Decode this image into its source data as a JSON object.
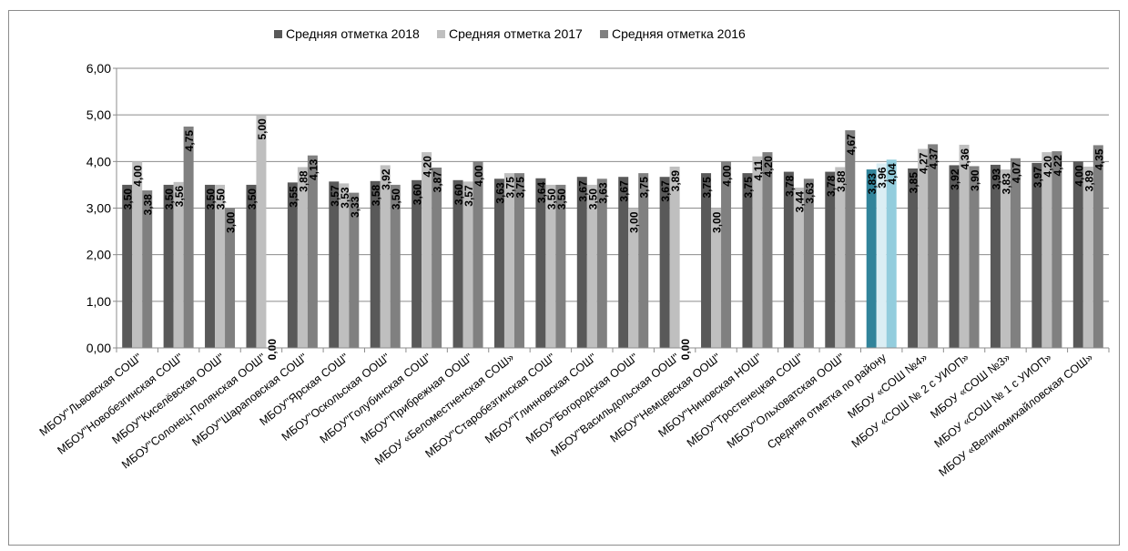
{
  "chart_data": {
    "type": "bar",
    "categories": [
      "МБОУ\"Львовская  СОШ\"",
      "МБОУ\"Новобезгинская СОШ\"",
      "МБОУ\"Киселёвская ООШ\"",
      "МБОУ\"Солонец-Полянская ООШ\"",
      "МБОУ\"Шараповская  СОШ\"",
      "МБОУ\"Ярская  СОШ\"",
      "МБОУ\"Оскольская ООШ\"",
      "МБОУ\"Голубинская СОШ\"",
      "МБОУ\"Прибрежная  ООШ\"",
      "МБОУ «Беломестненская СОШ»",
      "МБОУ\"Старобезгинская СОШ\"",
      "МБОУ\"Глинновская  СОШ\"",
      "МБОУ\"Богородская  ООШ\"",
      "МБОУ\"Васильдольская  ООШ\"",
      "МБОУ\"Немцевская  ООШ\"",
      "МБОУ\"Ниновская  НОШ\"",
      "МБОУ\"Тростенецкая СОШ\"",
      "МБОУ\"Ольховатская  ООШ\"",
      "Средняя отметка по району",
      "МБОУ «СОШ №4»",
      "МБОУ «СОШ № 2 с УИОП»",
      "МБОУ «СОШ №3»",
      "МБОУ «СОШ № 1 с УИОП»",
      "МБОУ «Великомихайловская СОШ»"
    ],
    "series": [
      {
        "name": "Средняя отметка 2018",
        "color": "#595959",
        "values": [
          3.5,
          3.5,
          3.5,
          3.5,
          3.55,
          3.57,
          3.58,
          3.6,
          3.6,
          3.63,
          3.64,
          3.67,
          3.67,
          3.67,
          3.75,
          3.75,
          3.78,
          3.78,
          3.83,
          3.85,
          3.92,
          3.93,
          3.97,
          4.0
        ],
        "labels": [
          "3,50",
          "3,50",
          "3,50",
          "3,50",
          "3,55",
          "3,57",
          "3,58",
          "3,60",
          "3,60",
          "3,63",
          "3,64",
          "3,67",
          "3,67",
          "3,67",
          "3,75",
          "3,75",
          "3,78",
          "3,78",
          "3,83",
          "3,85",
          "3,92",
          "3,93",
          "3,97",
          "4,00"
        ]
      },
      {
        "name": "Средняя отметка 2017",
        "color": "#bfbfbf",
        "values": [
          4.0,
          3.56,
          3.5,
          5.0,
          3.88,
          3.53,
          3.92,
          4.2,
          3.57,
          3.75,
          3.5,
          3.5,
          3.0,
          3.89,
          3.0,
          4.11,
          3.44,
          3.88,
          3.96,
          4.27,
          4.36,
          3.83,
          4.2,
          3.89
        ],
        "labels": [
          "4,00",
          "3,56",
          "3,50",
          "5,00",
          "3,88",
          "3,53",
          "3,92",
          "4,20",
          "3,57",
          "3,75",
          "3,50",
          "3,50",
          "3,00",
          "3,89",
          "3,00",
          "4,11",
          "3,44",
          "3,88",
          "3,96",
          "4,27",
          "4,36",
          "3,83",
          "4,20",
          "3,89"
        ]
      },
      {
        "name": "Средняя отметка 2016",
        "color": "#808080",
        "values": [
          3.38,
          4.75,
          3.0,
          0.0,
          4.13,
          3.33,
          3.5,
          3.87,
          4.0,
          3.75,
          3.5,
          3.63,
          3.75,
          0.0,
          4.0,
          4.2,
          3.63,
          4.67,
          4.04,
          4.37,
          3.9,
          4.07,
          4.22,
          4.35
        ],
        "labels": [
          "3,38",
          "4,75",
          "3,00",
          "0,00",
          "4,13",
          "3,33",
          "3,50",
          "3,87",
          "4,00",
          "3,75",
          "3,50",
          "3,63",
          "3,75",
          "0,00",
          "4,00",
          "4,20",
          "3,63",
          "4,67",
          "4,04",
          "4,37",
          "3,90",
          "4,07",
          "4,22",
          "4,35"
        ]
      }
    ],
    "highlight": {
      "category": "Средняя отметка по району",
      "colors": [
        "#31849b",
        "#dbeef4",
        "#93cddd"
      ]
    },
    "ylim": [
      0,
      6
    ],
    "yticks": [
      "0,00",
      "1,00",
      "2,00",
      "3,00",
      "4,00",
      "5,00",
      "6,00"
    ],
    "grid": true,
    "legend": "top"
  }
}
